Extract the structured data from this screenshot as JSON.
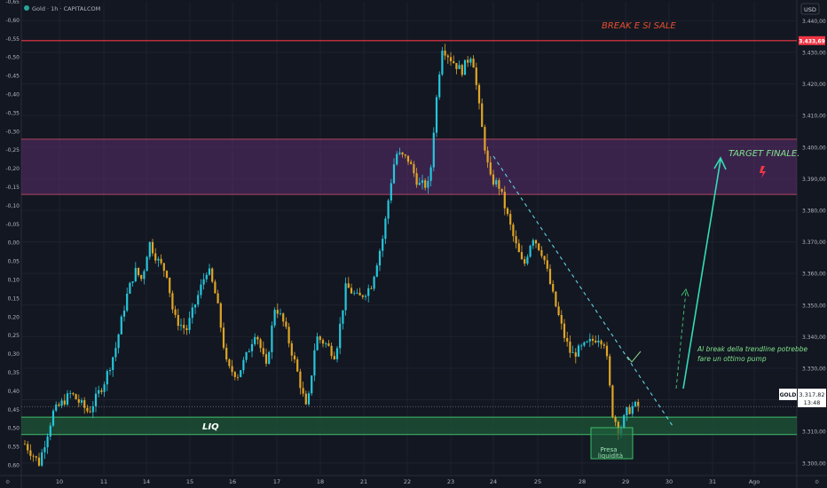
{
  "header": {
    "symbol_line": "Gold · 1h · CAPITALCOM",
    "currency": "USD"
  },
  "price_scale": {
    "ticks": [
      "3.440,00",
      "3.430,00",
      "3.420,00",
      "3.410,00",
      "3.400,00",
      "3.390,00",
      "3.380,00",
      "3.370,00",
      "3.360,00",
      "3.350,00",
      "3.340,00",
      "3.330,00",
      "3.320,00",
      "3.310,00",
      "3.300,00"
    ],
    "resistance_label": "3.433,69",
    "symbol_tag": "GOLD",
    "last_price": "3.317,82",
    "countdown": "13:48"
  },
  "left_scale": {
    "ticks": [
      "-0,65",
      "-0,60",
      "-0,55",
      "-0,50",
      "-0,45",
      "-0,40",
      "-0,35",
      "-0,30",
      "-0,25",
      "-0,20",
      "-0,15",
      "-0,10",
      "-0,05",
      "0,00",
      "0,05",
      "0,10",
      "0,15",
      "0,20",
      "0,25",
      "0,30",
      "0,35",
      "0,40",
      "0,45",
      "0,50",
      "0,55",
      "0,60"
    ]
  },
  "time_axis": {
    "labels": [
      "10",
      "11",
      "14",
      "15",
      "16",
      "17",
      "18",
      "21",
      "22",
      "23",
      "24",
      "25",
      "28",
      "29",
      "30",
      "31",
      "Ago"
    ]
  },
  "annotations": {
    "break_text": "BREAK E SI SALE",
    "target_text": "TARGET FINALE.",
    "liq_text": "LIQ",
    "presa_line1": "Presa",
    "presa_line2": "liquidità",
    "note_line1": "Al break della trendline potrebbe",
    "note_line2": "fare un ottimo pump"
  },
  "colors": {
    "background": "#131722",
    "bull": "#26c6da",
    "bear": "#e0a526",
    "resistance": "#f23645",
    "zone_purple": "#5b2d6e",
    "zone_green": "#1e5e3a",
    "arrow": "#33dcb5",
    "last_price_bg": "#ffffff"
  },
  "chart_data": {
    "type": "candlestick",
    "symbol": "Gold",
    "timeframe": "1h",
    "y_range": [
      3296,
      3446
    ],
    "levels": {
      "resistance": 3433.69,
      "last_price": 3317.82
    },
    "zones": [
      {
        "name": "purple",
        "from": 3385,
        "to": 3402.5
      },
      {
        "name": "green",
        "from": 3309,
        "to": 3314.5
      }
    ],
    "path": [
      [
        8,
        3292
      ],
      [
        28,
        3306
      ],
      [
        44,
        3300
      ],
      [
        60,
        3316
      ],
      [
        80,
        3322
      ],
      [
        100,
        3316
      ],
      [
        118,
        3326
      ],
      [
        130,
        3336
      ],
      [
        142,
        3352
      ],
      [
        152,
        3361
      ],
      [
        160,
        3358
      ],
      [
        168,
        3370
      ],
      [
        178,
        3364
      ],
      [
        188,
        3360
      ],
      [
        196,
        3346
      ],
      [
        210,
        3342
      ],
      [
        222,
        3352
      ],
      [
        234,
        3362
      ],
      [
        244,
        3352
      ],
      [
        256,
        3330
      ],
      [
        268,
        3328
      ],
      [
        278,
        3334
      ],
      [
        288,
        3342
      ],
      [
        300,
        3330
      ],
      [
        310,
        3350
      ],
      [
        320,
        3344
      ],
      [
        334,
        3330
      ],
      [
        346,
        3316
      ],
      [
        356,
        3340
      ],
      [
        366,
        3338
      ],
      [
        378,
        3334
      ],
      [
        390,
        3356
      ],
      [
        404,
        3352
      ],
      [
        418,
        3356
      ],
      [
        432,
        3372
      ],
      [
        440,
        3388
      ],
      [
        446,
        3398
      ],
      [
        460,
        3396
      ],
      [
        472,
        3388
      ],
      [
        484,
        3388
      ],
      [
        490,
        3410
      ],
      [
        498,
        3432
      ],
      [
        508,
        3428
      ],
      [
        520,
        3424
      ],
      [
        532,
        3430
      ],
      [
        542,
        3408
      ],
      [
        552,
        3390
      ],
      [
        562,
        3388
      ],
      [
        570,
        3380
      ],
      [
        580,
        3370
      ],
      [
        590,
        3362
      ],
      [
        600,
        3372
      ],
      [
        612,
        3366
      ],
      [
        624,
        3352
      ],
      [
        636,
        3340
      ],
      [
        644,
        3334
      ],
      [
        654,
        3336
      ],
      [
        664,
        3338
      ],
      [
        674,
        3340
      ],
      [
        682,
        3338
      ],
      [
        690,
        3316
      ],
      [
        698,
        3310
      ],
      [
        706,
        3316
      ],
      [
        714,
        3318
      ],
      [
        720,
        3318
      ]
    ]
  }
}
